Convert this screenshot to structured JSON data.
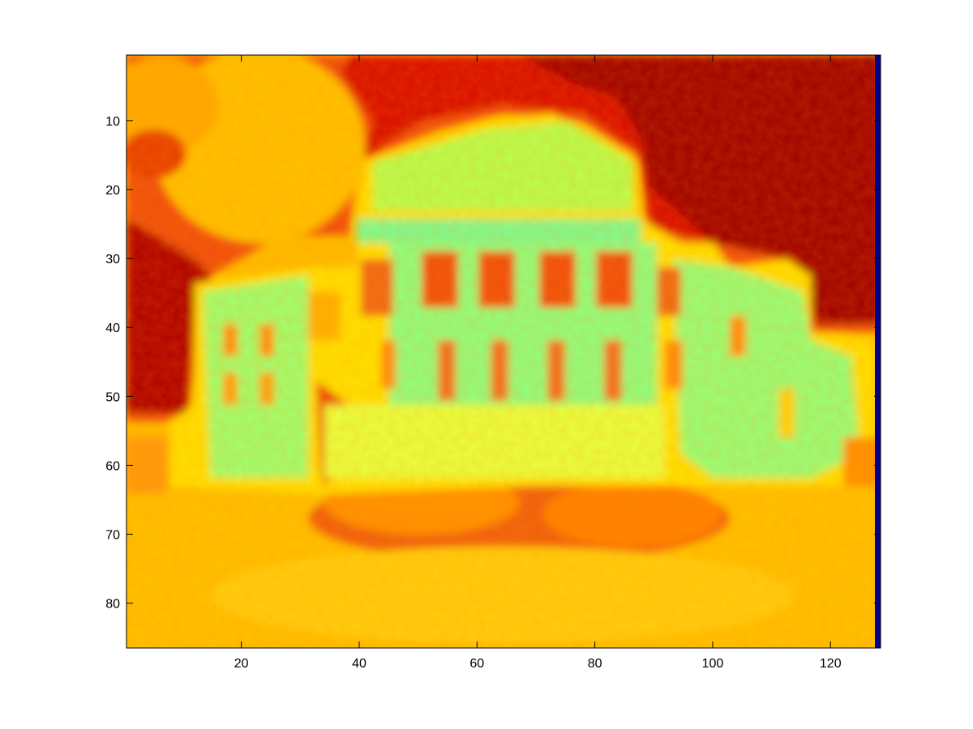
{
  "chart_data": {
    "type": "heatmap",
    "title": "",
    "xlabel": "",
    "ylabel": "",
    "colormap": "jet",
    "grid": false,
    "xlim": [
      0.5,
      128.5
    ],
    "ylim": [
      0.5,
      86.5
    ],
    "y_reversed": true,
    "xticks": [
      20,
      40,
      60,
      80,
      100,
      120
    ],
    "yticks": [
      10,
      20,
      30,
      40,
      50,
      60,
      70,
      80
    ],
    "image_size": {
      "columns": 128,
      "rows": 86
    },
    "colors": {
      "dark_red": "#8b0000",
      "red": "#e60000",
      "orange_red": "#f05010",
      "orange": "#ff9a00",
      "amber": "#ffbb00",
      "yellow": "#ffe000",
      "light_yellow": "#ffff30",
      "yellow_green": "#d0ff40",
      "light_green": "#a0ff60",
      "aqua_green": "#70f8a0",
      "navy": "#00008b"
    }
  }
}
